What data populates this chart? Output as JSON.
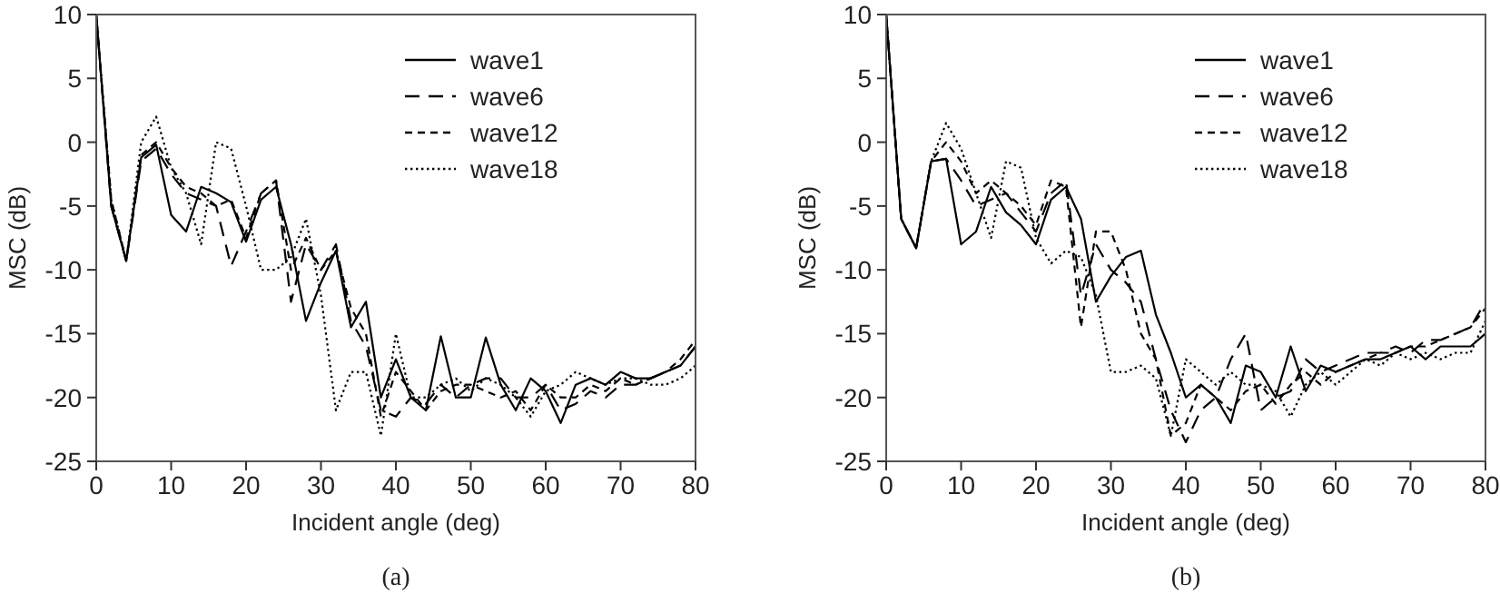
{
  "chart_data": [
    {
      "type": "line",
      "title": "(a)",
      "xlabel": "Incident angle (deg)",
      "ylabel": "MSC (dB)",
      "x": [
        0,
        2,
        4,
        6,
        8,
        10,
        12,
        14,
        16,
        18,
        20,
        22,
        24,
        26,
        28,
        30,
        32,
        34,
        36,
        38,
        40,
        42,
        44,
        46,
        48,
        50,
        52,
        54,
        56,
        58,
        60,
        62,
        64,
        66,
        68,
        70,
        72,
        74,
        76,
        78,
        80
      ],
      "xlim": [
        0,
        80
      ],
      "xticks": [
        0,
        10,
        20,
        30,
        40,
        50,
        60,
        70,
        80
      ],
      "ylim": [
        -25,
        10
      ],
      "yticks": [
        -25,
        -20,
        -15,
        -10,
        -5,
        0,
        5,
        10
      ],
      "grid": false,
      "legend": "top right",
      "marker": "none",
      "series": [
        {
          "name": "wave1",
          "color": "#000000",
          "line_style": "solid",
          "values": [
            10,
            -5,
            -9.3,
            -1.2,
            -0.2,
            -5.7,
            -7,
            -3.5,
            -4,
            -4.7,
            -7.8,
            -4.5,
            -3.5,
            -8,
            -14,
            -11,
            -8.5,
            -14.5,
            -12.5,
            -20,
            -17,
            -20,
            -21,
            -15.2,
            -20,
            -20,
            -15.3,
            -19,
            -21,
            -18.5,
            -19.5,
            -22,
            -19,
            -18.5,
            -19,
            -18,
            -18.5,
            -18.5,
            -18,
            -17.5,
            -16
          ]
        },
        {
          "name": "wave6",
          "color": "#000000",
          "line_style": "dashed",
          "values": [
            10,
            -5,
            -9.3,
            -1.5,
            -0.5,
            -2.5,
            -4,
            -4.5,
            -5,
            -9.7,
            -7,
            -4,
            -3,
            -12.5,
            -8,
            -10,
            -8,
            -14,
            -16,
            -21,
            -21.5,
            -20,
            -20.5,
            -19,
            -20,
            -19,
            -18.5,
            -18.5,
            -20,
            -20,
            -19,
            -21,
            -20.5,
            -19.5,
            -20,
            -19,
            -19,
            -18.5,
            -18,
            -17.5,
            -16
          ]
        },
        {
          "name": "wave12",
          "color": "#000000",
          "line_style": "dashed",
          "values": [
            10,
            -4.5,
            -9.3,
            -1,
            0,
            -2,
            -3.5,
            -4,
            -5,
            -4.5,
            -7.5,
            -4,
            -3,
            -10,
            -7.5,
            -10,
            -8.5,
            -13,
            -15,
            -21.5,
            -18,
            -19.5,
            -21,
            -19.5,
            -19,
            -19,
            -19.5,
            -20,
            -19.5,
            -21,
            -19,
            -20,
            -20,
            -19,
            -19.5,
            -18.5,
            -19,
            -18.5,
            -18,
            -17,
            -15.5
          ]
        },
        {
          "name": "wave18",
          "color": "#000000",
          "line_style": "dotted",
          "values": [
            10,
            -4.5,
            -9.3,
            0,
            2,
            -2,
            -4,
            -8,
            0,
            -0.5,
            -5,
            -10,
            -10,
            -9,
            -6,
            -12,
            -21,
            -18,
            -18,
            -23,
            -15,
            -20,
            -20,
            -19,
            -18.5,
            -19.5,
            -18.5,
            -19,
            -20,
            -21.5,
            -19.5,
            -19,
            -18,
            -18.5,
            -19,
            -18.5,
            -18.5,
            -19,
            -19,
            -18.5,
            -17.5
          ]
        }
      ]
    },
    {
      "type": "line",
      "title": "(b)",
      "xlabel": "Incident angle (deg)",
      "ylabel": "MSC (dB)",
      "x": [
        0,
        2,
        4,
        6,
        8,
        10,
        12,
        14,
        16,
        18,
        20,
        22,
        24,
        26,
        28,
        30,
        32,
        34,
        36,
        38,
        40,
        42,
        44,
        46,
        48,
        50,
        52,
        54,
        56,
        58,
        60,
        62,
        64,
        66,
        68,
        70,
        72,
        74,
        76,
        78,
        80
      ],
      "xlim": [
        0,
        80
      ],
      "xticks": [
        0,
        10,
        20,
        30,
        40,
        50,
        60,
        70,
        80
      ],
      "ylim": [
        -25,
        10
      ],
      "yticks": [
        -25,
        -20,
        -15,
        -10,
        -5,
        0,
        5,
        10
      ],
      "grid": false,
      "legend": "top right",
      "marker": "none",
      "series": [
        {
          "name": "wave1",
          "color": "#000000",
          "line_style": "solid",
          "values": [
            10,
            -6,
            -8.3,
            -1.5,
            -1.3,
            -8,
            -7,
            -3.5,
            -5.5,
            -6.5,
            -8,
            -4.5,
            -3.5,
            -6,
            -12.5,
            -10.5,
            -9,
            -8.5,
            -13.5,
            -16.5,
            -20,
            -19,
            -20,
            -22,
            -17.5,
            -18,
            -20,
            -16,
            -19.5,
            -17.5,
            -18,
            -17.5,
            -17,
            -17,
            -16.5,
            -16,
            -17,
            -16,
            -16,
            -16,
            -15
          ]
        },
        {
          "name": "wave6",
          "color": "#000000",
          "line_style": "dashed",
          "values": [
            10,
            -6,
            -8.3,
            -1.5,
            -1.3,
            -3,
            -5,
            -4.5,
            -4,
            -5.5,
            -7,
            -4,
            -3,
            -12,
            -8,
            -10,
            -11,
            -12.5,
            -17,
            -21,
            -23.5,
            -21,
            -20,
            -17,
            -15,
            -21,
            -20,
            -19.5,
            -17,
            -18,
            -17.5,
            -17,
            -16.5,
            -16.5,
            -16,
            -16.5,
            -15.5,
            -15.5,
            -15,
            -14.5,
            -12.5
          ]
        },
        {
          "name": "wave12",
          "color": "#000000",
          "line_style": "dashed",
          "values": [
            10,
            -6,
            -8.3,
            -1.5,
            0,
            -1.5,
            -4,
            -3,
            -4,
            -5,
            -6.5,
            -3,
            -3.5,
            -14.5,
            -7,
            -7,
            -10,
            -15,
            -17,
            -23,
            -22,
            -19,
            -20,
            -21,
            -19.5,
            -19,
            -20.5,
            -19,
            -18,
            -19,
            -18,
            -17.5,
            -17,
            -16.5,
            -16.5,
            -16,
            -16,
            -15.5,
            -15,
            -14.5,
            -13
          ]
        },
        {
          "name": "wave18",
          "color": "#000000",
          "line_style": "dotted",
          "values": [
            10,
            -6,
            -8.3,
            -1.5,
            1.5,
            -0.5,
            -4,
            -7.5,
            -1.5,
            -2,
            -7.5,
            -9.5,
            -8.5,
            -9,
            -12,
            -18,
            -18,
            -17.5,
            -18.5,
            -23,
            -17,
            -18,
            -19,
            -18,
            -19,
            -19,
            -19.5,
            -21.5,
            -19,
            -18,
            -19,
            -18,
            -17,
            -17.5,
            -16.5,
            -17,
            -16.5,
            -17,
            -16.5,
            -16.5,
            -14
          ]
        }
      ]
    }
  ]
}
